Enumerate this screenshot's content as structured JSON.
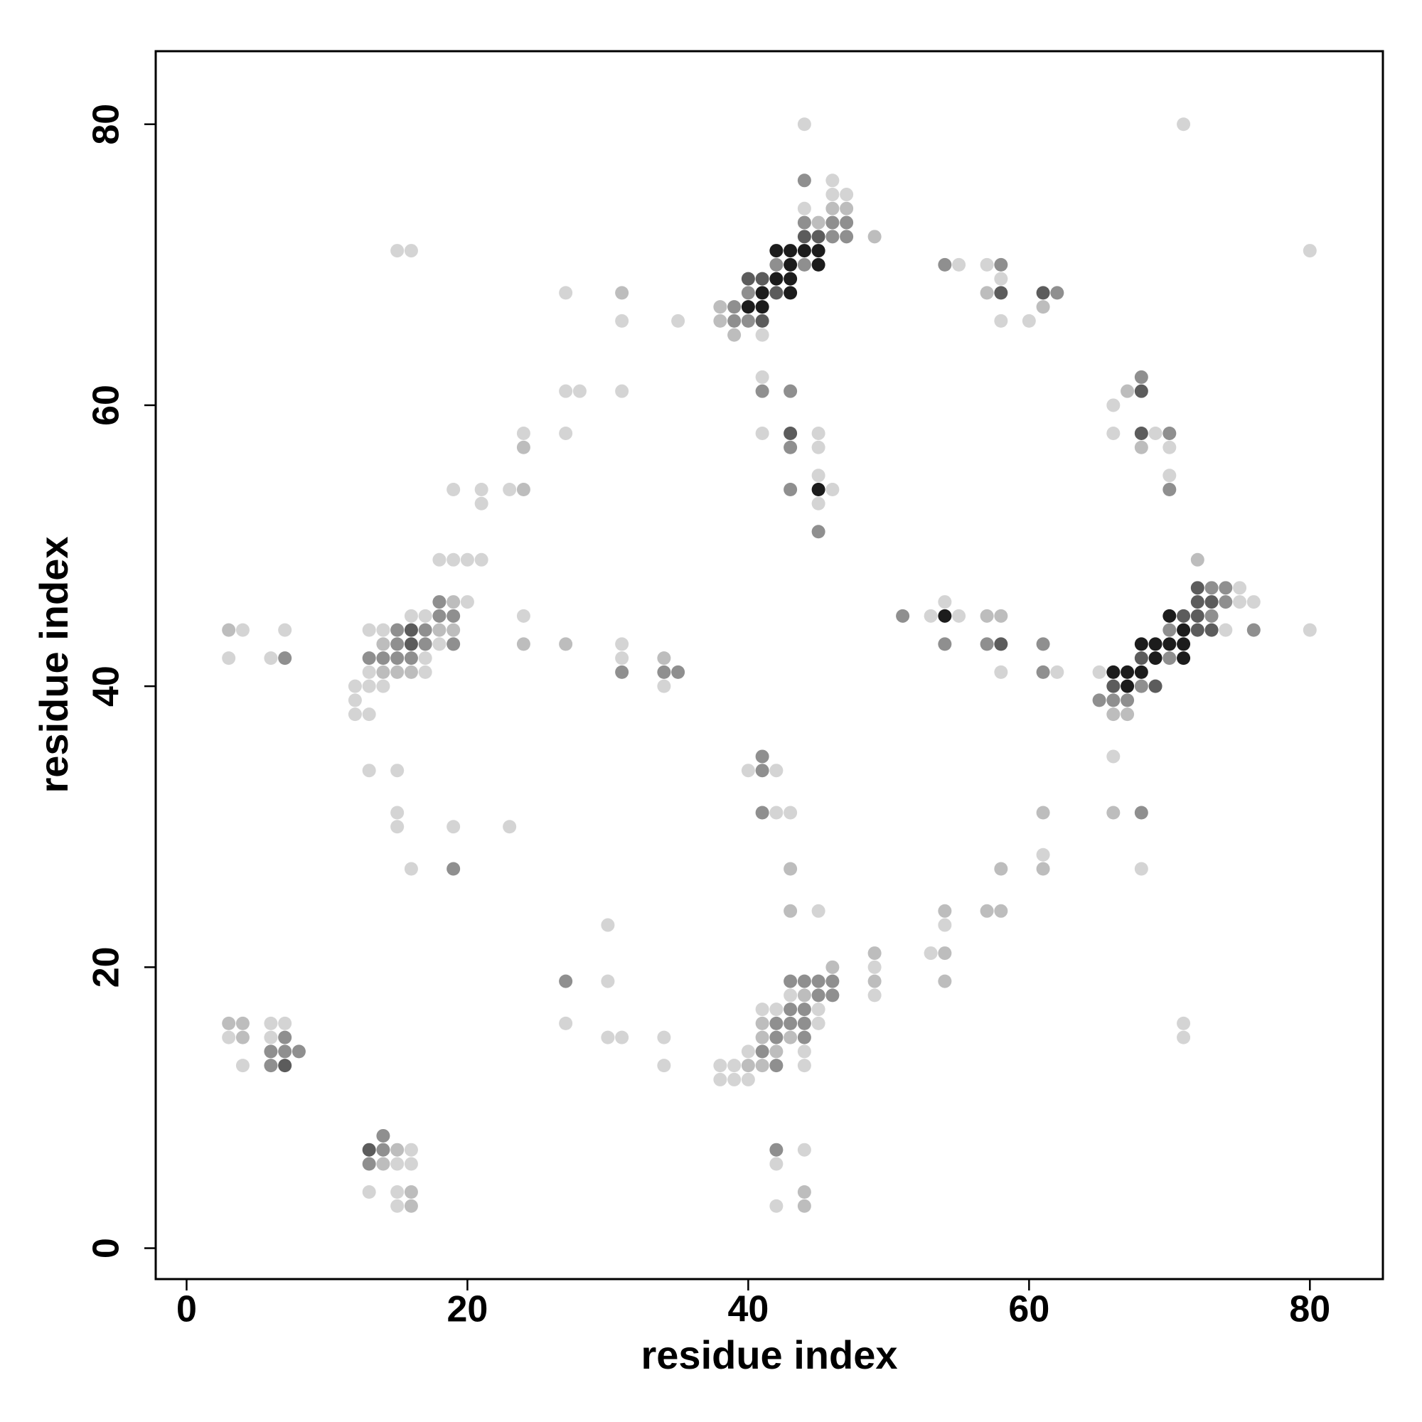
{
  "chart_data": {
    "type": "scatter",
    "xlabel": "residue index",
    "ylabel": "residue index",
    "xlim": [
      -2.2,
      85.2
    ],
    "ylim": [
      -2.2,
      85.2
    ],
    "xticks": [
      0,
      20,
      40,
      60,
      80
    ],
    "yticks": [
      0,
      20,
      40,
      60,
      80
    ],
    "series": [
      {
        "color": "#d4d4d4",
        "x": [
          3,
          6,
          6,
          7,
          4,
          16,
          16,
          15,
          13,
          15,
          15,
          42,
          42,
          44,
          4,
          7,
          3,
          6,
          13,
          14,
          16,
          17,
          20,
          18,
          17,
          13,
          17,
          12,
          13,
          14,
          12,
          12,
          13,
          18,
          19,
          20,
          21,
          19,
          21,
          23,
          21,
          24,
          27,
          28,
          27,
          27,
          31,
          35,
          31,
          31,
          31,
          34,
          15,
          16,
          13,
          15,
          15,
          15,
          19,
          16,
          23,
          24,
          44,
          46,
          46,
          47,
          44,
          41,
          41,
          41,
          45,
          45,
          45,
          46,
          45,
          55,
          57,
          58,
          58,
          60,
          66,
          66,
          69,
          70,
          70,
          71,
          80,
          75,
          75,
          76,
          74,
          80,
          65,
          66,
          68,
          53,
          55,
          54,
          58,
          62,
          61,
          54,
          53,
          49,
          49,
          71,
          71,
          40,
          42,
          42,
          43,
          45,
          30,
          30,
          27,
          30,
          31,
          34,
          34,
          43,
          41,
          42,
          45,
          45,
          40,
          44,
          39,
          44,
          38,
          39,
          40,
          38
        ],
        "y": [
          15,
          15,
          16,
          16,
          13,
          7,
          6,
          6,
          4,
          4,
          3,
          6,
          3,
          7,
          44,
          44,
          42,
          42,
          44,
          44,
          45,
          45,
          46,
          43,
          42,
          41,
          41,
          40,
          40,
          40,
          39,
          38,
          38,
          49,
          49,
          49,
          49,
          54,
          54,
          54,
          53,
          58,
          61,
          61,
          58,
          68,
          66,
          66,
          61,
          43,
          42,
          40,
          71,
          71,
          34,
          34,
          31,
          30,
          30,
          27,
          30,
          45,
          80,
          76,
          75,
          75,
          74,
          65,
          62,
          58,
          58,
          57,
          55,
          54,
          53,
          70,
          70,
          69,
          66,
          66,
          60,
          58,
          58,
          57,
          55,
          80,
          71,
          47,
          46,
          46,
          44,
          44,
          41,
          35,
          27,
          45,
          45,
          46,
          41,
          41,
          28,
          23,
          21,
          20,
          18,
          16,
          15,
          34,
          34,
          31,
          31,
          24,
          23,
          19,
          16,
          15,
          15,
          15,
          13,
          18,
          17,
          17,
          17,
          16,
          14,
          14,
          13,
          13,
          12,
          12,
          12,
          13
        ]
      },
      {
        "color": "#bdbdbd",
        "x": [
          3,
          4,
          4,
          15,
          14,
          16,
          16,
          44,
          44,
          3,
          18,
          19,
          19,
          14,
          14,
          15,
          16,
          24,
          24,
          27,
          34,
          46,
          47,
          45,
          49,
          38,
          38,
          39,
          57,
          61,
          67,
          68,
          72,
          66,
          67,
          57,
          58,
          61,
          58,
          61,
          54,
          57,
          58,
          49,
          54,
          49,
          54,
          66,
          43,
          43,
          46,
          44,
          41,
          41,
          43,
          42,
          40,
          41,
          31,
          24
        ],
        "y": [
          16,
          16,
          15,
          7,
          6,
          4,
          3,
          4,
          3,
          44,
          44,
          44,
          46,
          43,
          41,
          41,
          41,
          57,
          43,
          43,
          42,
          74,
          74,
          73,
          72,
          67,
          66,
          65,
          68,
          67,
          61,
          57,
          49,
          38,
          38,
          45,
          45,
          31,
          27,
          27,
          24,
          24,
          24,
          21,
          21,
          19,
          19,
          31,
          27,
          24,
          20,
          18,
          16,
          15,
          15,
          14,
          13,
          13,
          68,
          54
        ]
      },
      {
        "color": "#8f8f8f",
        "x": [
          7,
          6,
          7,
          8,
          6,
          14,
          14,
          13,
          42,
          7,
          15,
          17,
          18,
          19,
          18,
          15,
          17,
          19,
          13,
          14,
          15,
          16,
          31,
          34,
          35,
          19,
          44,
          44,
          46,
          47,
          46,
          47,
          42,
          44,
          40,
          39,
          39,
          40,
          41,
          43,
          43,
          43,
          45,
          54,
          58,
          62,
          68,
          70,
          70,
          73,
          74,
          74,
          73,
          70,
          76,
          70,
          68,
          65,
          66,
          67,
          68,
          51,
          54,
          57,
          61,
          61,
          41,
          41,
          41,
          27,
          43,
          44,
          45,
          46,
          45,
          46,
          43,
          44,
          42,
          43,
          44,
          42,
          44,
          41,
          42
        ],
        "y": [
          15,
          14,
          14,
          14,
          13,
          7,
          8,
          6,
          7,
          42,
          44,
          44,
          45,
          45,
          46,
          43,
          43,
          43,
          42,
          42,
          42,
          42,
          41,
          41,
          41,
          27,
          76,
          73,
          73,
          73,
          72,
          72,
          70,
          70,
          68,
          67,
          66,
          66,
          61,
          61,
          57,
          54,
          51,
          70,
          70,
          68,
          62,
          58,
          54,
          47,
          47,
          46,
          45,
          44,
          44,
          42,
          40,
          39,
          39,
          39,
          31,
          45,
          43,
          43,
          43,
          41,
          35,
          34,
          31,
          19,
          19,
          19,
          19,
          19,
          18,
          18,
          17,
          17,
          16,
          16,
          16,
          15,
          15,
          14,
          13
        ]
      },
      {
        "color": "#5c5c5c",
        "x": [
          7,
          13,
          16,
          16,
          44,
          45,
          40,
          41,
          42,
          41,
          43,
          58,
          61,
          68,
          68,
          72,
          72,
          73,
          71,
          72,
          72,
          73,
          68,
          66,
          69,
          58
        ],
        "y": [
          13,
          7,
          44,
          43,
          72,
          72,
          69,
          69,
          68,
          66,
          58,
          68,
          68,
          61,
          58,
          47,
          46,
          46,
          45,
          45,
          44,
          44,
          42,
          40,
          40,
          43
        ]
      },
      {
        "color": "#1c1c1c",
        "x": [
          42,
          43,
          44,
          45,
          43,
          45,
          42,
          43,
          41,
          43,
          40,
          41,
          45,
          54,
          70,
          71,
          68,
          69,
          70,
          71,
          69,
          71,
          66,
          67,
          68,
          67
        ],
        "y": [
          71,
          71,
          71,
          71,
          70,
          70,
          69,
          69,
          68,
          68,
          67,
          67,
          54,
          45,
          45,
          44,
          43,
          43,
          43,
          43,
          42,
          42,
          41,
          41,
          41,
          40
        ]
      }
    ]
  }
}
